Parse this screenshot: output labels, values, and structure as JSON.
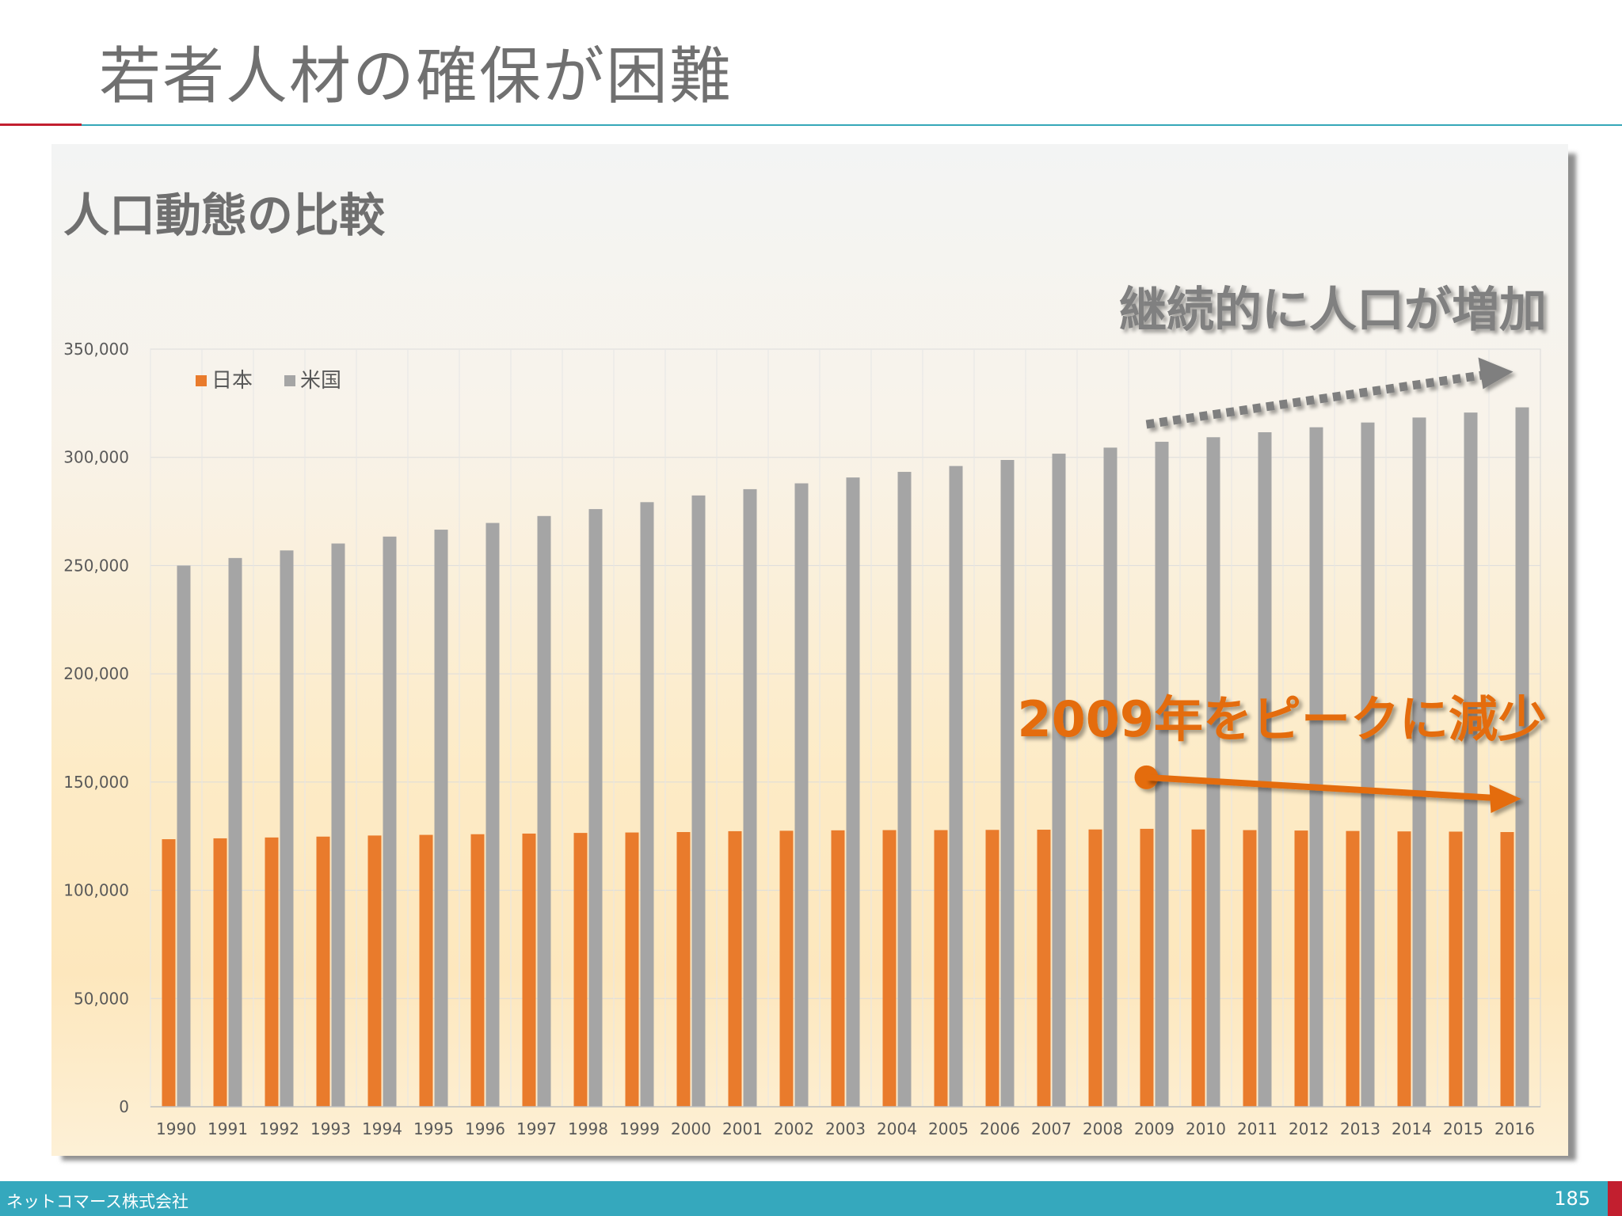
{
  "slide": {
    "title": "若者人材の確保が困難",
    "company": "ネットコマース株式会社",
    "page_number": "185"
  },
  "colors": {
    "japan": "#e97b2c",
    "usa": "#a5a5a5",
    "title_gray": "#707070",
    "footer_teal": "#35a8bd",
    "accent_red": "#c21f2f",
    "annotation_orange": "#e46c0a",
    "annotation_gray": "#7f7f7f"
  },
  "chart_data": {
    "type": "bar",
    "title": "人口動態の比較",
    "xlabel": "",
    "ylabel": "",
    "ylim": [
      0,
      350000
    ],
    "yticks": [
      0,
      50000,
      100000,
      150000,
      200000,
      250000,
      300000,
      350000
    ],
    "ytick_labels": [
      "0",
      "50,000",
      "100,000",
      "150,000",
      "200,000",
      "250,000",
      "300,000",
      "350,000"
    ],
    "grid": true,
    "legend_position": "top-left",
    "categories": [
      "1990",
      "1991",
      "1992",
      "1993",
      "1994",
      "1995",
      "1996",
      "1997",
      "1998",
      "1999",
      "2000",
      "2001",
      "2002",
      "2003",
      "2004",
      "2005",
      "2006",
      "2007",
      "2008",
      "2009",
      "2010",
      "2011",
      "2012",
      "2013",
      "2014",
      "2015",
      "2016"
    ],
    "series": [
      {
        "name": "日本",
        "color": "#e97b2c",
        "values": [
          123600,
          124000,
          124400,
          124800,
          125300,
          125600,
          125900,
          126200,
          126500,
          126700,
          126900,
          127300,
          127500,
          127700,
          127800,
          127800,
          127900,
          128000,
          128100,
          128400,
          128100,
          127800,
          127600,
          127400,
          127200,
          127100,
          126900
        ]
      },
      {
        "name": "米国",
        "color": "#a5a5a5",
        "values": [
          250000,
          253500,
          257000,
          260200,
          263400,
          266600,
          269700,
          272900,
          276100,
          279300,
          282400,
          285300,
          288000,
          290700,
          293300,
          296000,
          298800,
          301700,
          304500,
          307200,
          309300,
          311600,
          313900,
          316100,
          318400,
          320700,
          323100
        ]
      }
    ],
    "annotations": [
      {
        "text": "継続的に人口が増加",
        "color": "#7f7f7f"
      },
      {
        "text": "2009年をピークに減少",
        "color": "#e46c0a"
      }
    ]
  }
}
